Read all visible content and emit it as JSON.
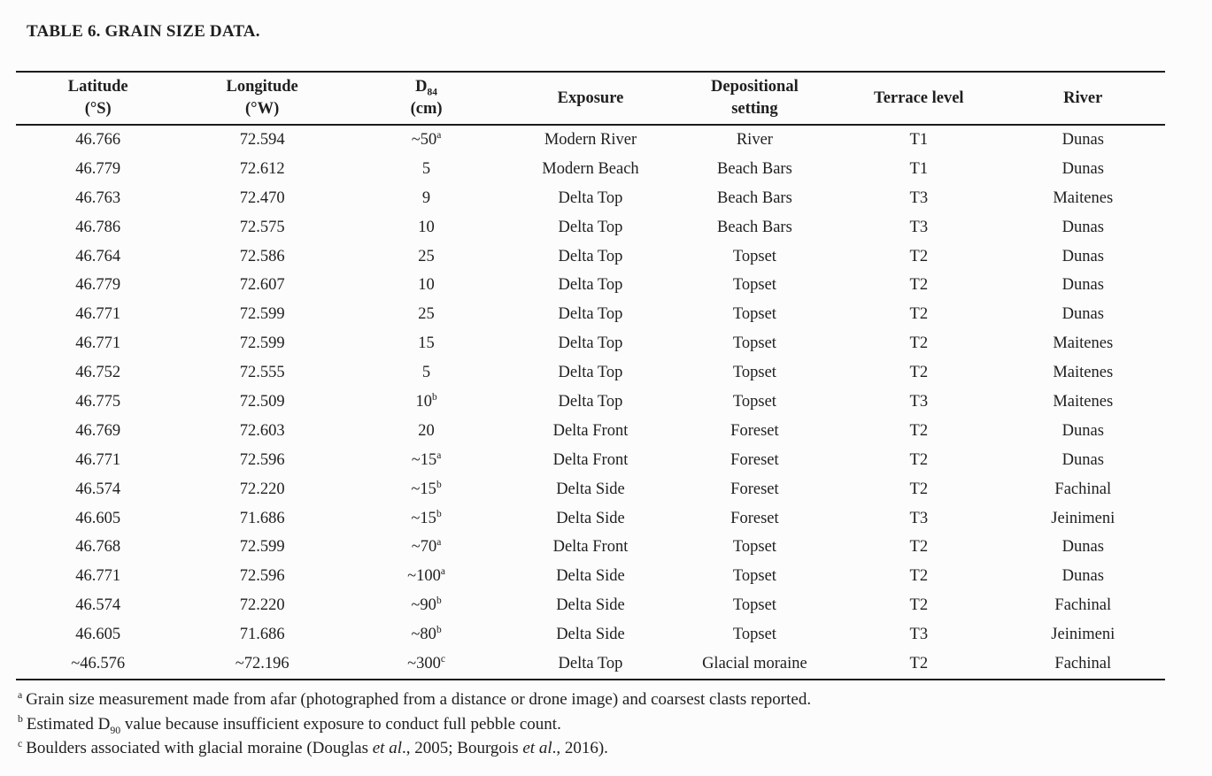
{
  "title": "TABLE 6. GRAIN SIZE DATA.",
  "colors": {
    "background": "#fcfcfc",
    "text": "#1f1f1f",
    "rule": "#1c1c1c"
  },
  "table": {
    "headers": {
      "lat1": "Latitude",
      "lat2": "(°S)",
      "lon1": "Longitude",
      "lon2": "(°W)",
      "d84_base": "D",
      "d84_sub": "84",
      "d84_unit": "(cm)",
      "exposure": "Exposure",
      "dep1": "Depositional",
      "dep2": "setting",
      "terrace": "Terrace level",
      "river": "River"
    },
    "rows": [
      [
        "46.766",
        "72.594",
        {
          "v": "~50",
          "sup": "a"
        },
        "Modern River",
        "River",
        "T1",
        "Dunas"
      ],
      [
        "46.779",
        "72.612",
        "5",
        "Modern Beach",
        "Beach Bars",
        "T1",
        "Dunas"
      ],
      [
        "46.763",
        "72.470",
        "9",
        "Delta Top",
        "Beach Bars",
        "T3",
        "Maitenes"
      ],
      [
        "46.786",
        "72.575",
        "10",
        "Delta Top",
        "Beach Bars",
        "T3",
        "Dunas"
      ],
      [
        "46.764",
        "72.586",
        "25",
        "Delta Top",
        "Topset",
        "T2",
        "Dunas"
      ],
      [
        "46.779",
        "72.607",
        "10",
        "Delta Top",
        "Topset",
        "T2",
        "Dunas"
      ],
      [
        "46.771",
        "72.599",
        "25",
        "Delta Top",
        "Topset",
        "T2",
        "Dunas"
      ],
      [
        "46.771",
        "72.599",
        "15",
        "Delta Top",
        "Topset",
        "T2",
        "Maitenes"
      ],
      [
        "46.752",
        "72.555",
        "5",
        "Delta Top",
        "Topset",
        "T2",
        "Maitenes"
      ],
      [
        "46.775",
        "72.509",
        {
          "v": "10",
          "sup": "b"
        },
        "Delta Top",
        "Topset",
        "T3",
        "Maitenes"
      ],
      [
        "46.769",
        "72.603",
        "20",
        "Delta Front",
        "Foreset",
        "T2",
        "Dunas"
      ],
      [
        "46.771",
        "72.596",
        {
          "v": "~15",
          "sup": "a"
        },
        "Delta Front",
        "Foreset",
        "T2",
        "Dunas"
      ],
      [
        "46.574",
        "72.220",
        {
          "v": "~15",
          "sup": "b"
        },
        "Delta Side",
        "Foreset",
        "T2",
        "Fachinal"
      ],
      [
        "46.605",
        "71.686",
        {
          "v": "~15",
          "sup": "b"
        },
        "Delta Side",
        "Foreset",
        "T3",
        "Jeinimeni"
      ],
      [
        "46.768",
        "72.599",
        {
          "v": "~70",
          "sup": "a"
        },
        "Delta Front",
        "Topset",
        "T2",
        "Dunas"
      ],
      [
        "46.771",
        "72.596",
        {
          "v": "~100",
          "sup": "a"
        },
        "Delta Side",
        "Topset",
        "T2",
        "Dunas"
      ],
      [
        "46.574",
        "72.220",
        {
          "v": "~90",
          "sup": "b"
        },
        "Delta Side",
        "Topset",
        "T2",
        "Fachinal"
      ],
      [
        "46.605",
        "71.686",
        {
          "v": "~80",
          "sup": "b"
        },
        "Delta Side",
        "Topset",
        "T3",
        "Jeinimeni"
      ],
      [
        "~46.576",
        "~72.196",
        {
          "v": "~300",
          "sup": "c"
        },
        "Delta Top",
        "Glacial moraine",
        "T2",
        "Fachinal"
      ]
    ]
  },
  "footnotes": [
    {
      "marker": "a",
      "parts": [
        [
          "t",
          "Grain size measurement made from afar (photographed from a distance or drone image) and coarsest clasts reported."
        ]
      ]
    },
    {
      "marker": "b",
      "parts": [
        [
          "t",
          "Estimated D"
        ],
        [
          "sub",
          "90"
        ],
        [
          "t",
          " value because insufficient exposure to conduct full pebble count."
        ]
      ]
    },
    {
      "marker": "c",
      "parts": [
        [
          "t",
          "Boulders associated with glacial moraine (Douglas "
        ],
        [
          "i",
          "et al"
        ],
        [
          "t",
          "., 2005; Bourgois "
        ],
        [
          "i",
          "et al"
        ],
        [
          "t",
          "., 2016)."
        ]
      ]
    }
  ]
}
